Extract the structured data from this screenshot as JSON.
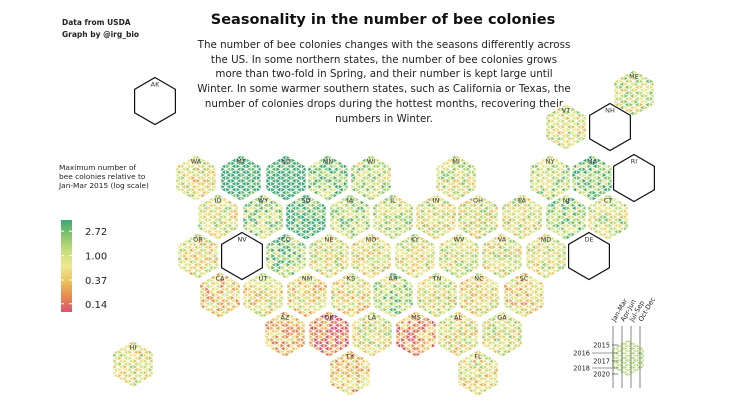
{
  "chart_data": {
    "type": "hexbin-tile-map",
    "title": "Seasonality in the number of bee colonies",
    "subtitle": "The number of bee colonies changes with the seasons differently across the US. In some northern states, the number of bee colonies grows more than two-fold in Spring, and their number is kept large until Winter. In some warmer southern states, such as California or Texas, the number of colonies drops during the hottest months, recovering their numbers in Winter.",
    "credits": [
      "Data from USDA",
      "Graph by @irg_bio"
    ],
    "legend": {
      "title": "Maximum number of bee colonies relative to Jan-Mar 2015 (log scale)",
      "ticks": [
        "2.72",
        "1.00",
        "0.37",
        "0.14"
      ],
      "tick_values": [
        2.72,
        1.0,
        0.37,
        0.14
      ],
      "range": [
        0.1,
        4.3
      ],
      "colors": [
        "#d9546d",
        "#e8894f",
        "#eac25c",
        "#eee98f",
        "#c6de7a",
        "#86c56a",
        "#3ba776"
      ]
    },
    "key": {
      "years": [
        "2015",
        "2016",
        "2017",
        "2018",
        "2020"
      ],
      "quarters": [
        "Jan-Mar",
        "Apr-Jun",
        "Jul-Sep",
        "Oct-Dec"
      ]
    },
    "states": [
      {
        "abbr": "AK",
        "data": false,
        "level": 0
      },
      {
        "abbr": "ME",
        "data": true,
        "level": 0.1
      },
      {
        "abbr": "VT",
        "data": true,
        "level": 0.05
      },
      {
        "abbr": "NH",
        "data": false,
        "level": 0
      },
      {
        "abbr": "WA",
        "data": true,
        "level": 0.02
      },
      {
        "abbr": "MT",
        "data": true,
        "level": 0.55
      },
      {
        "abbr": "ND",
        "data": true,
        "level": 0.6
      },
      {
        "abbr": "MN",
        "data": true,
        "level": 0.3
      },
      {
        "abbr": "WI",
        "data": true,
        "level": 0.15
      },
      {
        "abbr": "MI",
        "data": true,
        "level": 0.08
      },
      {
        "abbr": "NY",
        "data": true,
        "level": 0.15
      },
      {
        "abbr": "MA",
        "data": true,
        "level": 0.3
      },
      {
        "abbr": "RI",
        "data": false,
        "level": 0
      },
      {
        "abbr": "ID",
        "data": true,
        "level": 0.05
      },
      {
        "abbr": "WY",
        "data": true,
        "level": 0.2
      },
      {
        "abbr": "SD",
        "data": true,
        "level": 0.45
      },
      {
        "abbr": "IA",
        "data": true,
        "level": 0.2
      },
      {
        "abbr": "IL",
        "data": true,
        "level": 0.1
      },
      {
        "abbr": "IN",
        "data": true,
        "level": 0.05
      },
      {
        "abbr": "OH",
        "data": true,
        "level": 0.05
      },
      {
        "abbr": "PA",
        "data": true,
        "level": 0.05
      },
      {
        "abbr": "NJ",
        "data": true,
        "level": 0.25
      },
      {
        "abbr": "CT",
        "data": true,
        "level": 0.1
      },
      {
        "abbr": "OR",
        "data": true,
        "level": 0.0
      },
      {
        "abbr": "NV",
        "data": false,
        "level": 0
      },
      {
        "abbr": "CO",
        "data": true,
        "level": 0.3
      },
      {
        "abbr": "NE",
        "data": true,
        "level": 0.05
      },
      {
        "abbr": "MO",
        "data": true,
        "level": 0.0
      },
      {
        "abbr": "KY",
        "data": true,
        "level": 0.05
      },
      {
        "abbr": "WV",
        "data": true,
        "level": 0.05
      },
      {
        "abbr": "VA",
        "data": true,
        "level": 0.05
      },
      {
        "abbr": "MD",
        "data": true,
        "level": 0.05
      },
      {
        "abbr": "DE",
        "data": false,
        "level": 0
      },
      {
        "abbr": "CA",
        "data": true,
        "level": -0.1
      },
      {
        "abbr": "UT",
        "data": true,
        "level": 0.0
      },
      {
        "abbr": "NM",
        "data": true,
        "level": -0.05
      },
      {
        "abbr": "KS",
        "data": true,
        "level": 0.0
      },
      {
        "abbr": "AR",
        "data": true,
        "level": 0.2
      },
      {
        "abbr": "TN",
        "data": true,
        "level": 0.05
      },
      {
        "abbr": "NC",
        "data": true,
        "level": 0.0
      },
      {
        "abbr": "SC",
        "data": true,
        "level": -0.05
      },
      {
        "abbr": "AZ",
        "data": true,
        "level": -0.15
      },
      {
        "abbr": "OK",
        "data": true,
        "level": -0.4
      },
      {
        "abbr": "LA",
        "data": true,
        "level": 0.05
      },
      {
        "abbr": "MS",
        "data": true,
        "level": -0.25
      },
      {
        "abbr": "AL",
        "data": true,
        "level": 0.0
      },
      {
        "abbr": "GA",
        "data": true,
        "level": 0.05
      },
      {
        "abbr": "HI",
        "data": true,
        "level": 0.05
      },
      {
        "abbr": "TX",
        "data": true,
        "level": -0.1
      },
      {
        "abbr": "FL",
        "data": true,
        "level": 0.0
      }
    ]
  }
}
